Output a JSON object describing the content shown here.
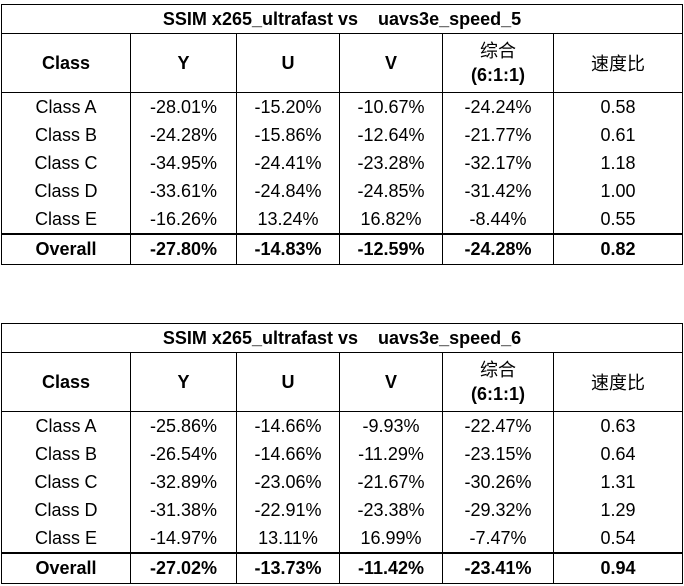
{
  "tables": [
    {
      "title": "SSIM x265_ultrafast vs    uavs3e_speed_5",
      "headers": {
        "class": "Class",
        "y": "Y",
        "u": "U",
        "v": "V",
        "combined_line1": "综合",
        "combined_line2": "(6:1:1)",
        "speed": "速度比"
      },
      "rows": [
        {
          "class": "Class A",
          "y": "-28.01%",
          "u": "-15.20%",
          "v": "-10.67%",
          "combined": "-24.24%",
          "speed": "0.58"
        },
        {
          "class": "Class B",
          "y": "-24.28%",
          "u": "-15.86%",
          "v": "-12.64%",
          "combined": "-21.77%",
          "speed": "0.61"
        },
        {
          "class": "Class C",
          "y": "-34.95%",
          "u": "-24.41%",
          "v": "-23.28%",
          "combined": "-32.17%",
          "speed": "1.18"
        },
        {
          "class": "Class D",
          "y": "-33.61%",
          "u": "-24.84%",
          "v": "-24.85%",
          "combined": "-31.42%",
          "speed": "1.00"
        },
        {
          "class": "Class E",
          "y": "-16.26%",
          "u": "13.24%",
          "v": "16.82%",
          "combined": "-8.44%",
          "speed": "0.55"
        }
      ],
      "overall": {
        "class": "Overall",
        "y": "-27.80%",
        "u": "-14.83%",
        "v": "-12.59%",
        "combined": "-24.28%",
        "speed": "0.82"
      }
    },
    {
      "title": "SSIM x265_ultrafast vs    uavs3e_speed_6",
      "headers": {
        "class": "Class",
        "y": "Y",
        "u": "U",
        "v": "V",
        "combined_line1": "综合",
        "combined_line2": "(6:1:1)",
        "speed": "速度比"
      },
      "rows": [
        {
          "class": "Class A",
          "y": "-25.86%",
          "u": "-14.66%",
          "v": "-9.93%",
          "combined": "-22.47%",
          "speed": "0.63"
        },
        {
          "class": "Class B",
          "y": "-26.54%",
          "u": "-14.66%",
          "v": "-11.29%",
          "combined": "-23.15%",
          "speed": "0.64"
        },
        {
          "class": "Class C",
          "y": "-32.89%",
          "u": "-23.06%",
          "v": "-21.67%",
          "combined": "-30.26%",
          "speed": "1.31"
        },
        {
          "class": "Class D",
          "y": "-31.38%",
          "u": "-22.91%",
          "v": "-23.38%",
          "combined": "-29.32%",
          "speed": "1.29"
        },
        {
          "class": "Class E",
          "y": "-14.97%",
          "u": "13.11%",
          "v": "16.99%",
          "combined": "-7.47%",
          "speed": "0.54"
        }
      ],
      "overall": {
        "class": "Overall",
        "y": "-27.02%",
        "u": "-13.73%",
        "v": "-11.42%",
        "combined": "-23.41%",
        "speed": "0.94"
      }
    }
  ]
}
